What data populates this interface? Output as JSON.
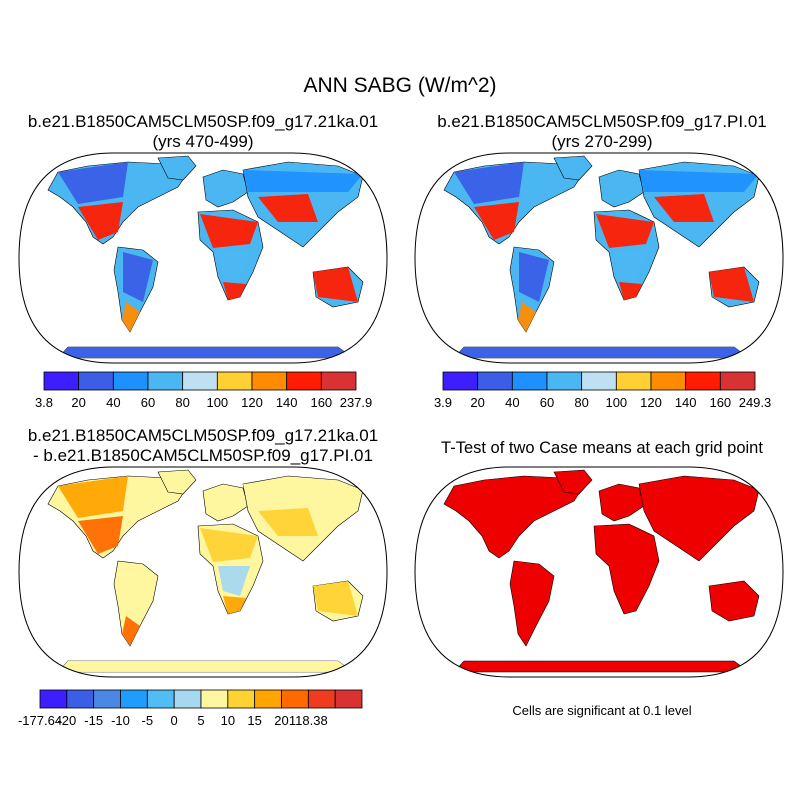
{
  "title": "ANN SABG (W/m^2)",
  "panels": {
    "case1": {
      "title": "b.e21.B1850CAM5CLM50SP.f09_g17.21ka.01",
      "subtitle": "(yrs 470-499)",
      "colorbar_labels": [
        "3.8",
        "20",
        "40",
        "60",
        "80",
        "100",
        "120",
        "140",
        "160",
        "237.9"
      ]
    },
    "case2": {
      "title": "b.e21.B1850CAM5CLM50SP.f09_g17.PI.01",
      "subtitle": "(yrs 270-299)",
      "colorbar_labels": [
        "3.9",
        "20",
        "40",
        "60",
        "80",
        "100",
        "120",
        "140",
        "160",
        "249.3"
      ]
    },
    "diff": {
      "title": "b.e21.B1850CAM5CLM50SP.f09_g17.21ka.01",
      "subtitle": "- b.e21.B1850CAM5CLM50SP.f09_g17.PI.01",
      "colorbar_labels": [
        "-177.64",
        "-20",
        "-15",
        "-10",
        "-5",
        "0",
        "5",
        "10",
        "15",
        "20",
        "118.38"
      ]
    },
    "ttest": {
      "title": "T-Test of two Case means at each grid point",
      "note": "Cells are significant at 0.1 level"
    }
  },
  "palettes": {
    "abs": [
      "#3d1eff",
      "#3a5ee6",
      "#1e90ff",
      "#4bb7f2",
      "#bfe0f3",
      "#ffd033",
      "#ff8c00",
      "#ff1c00",
      "#d93232"
    ],
    "diff": [
      "#3d1eff",
      "#3a5ee6",
      "#4b88e6",
      "#1e9cff",
      "#50bdf5",
      "#a6d8f0",
      "#fff6a0",
      "#ffd233",
      "#ffa500",
      "#ff6a00",
      "#f03c1e",
      "#d93232"
    ],
    "sig": "#ee0000"
  }
}
